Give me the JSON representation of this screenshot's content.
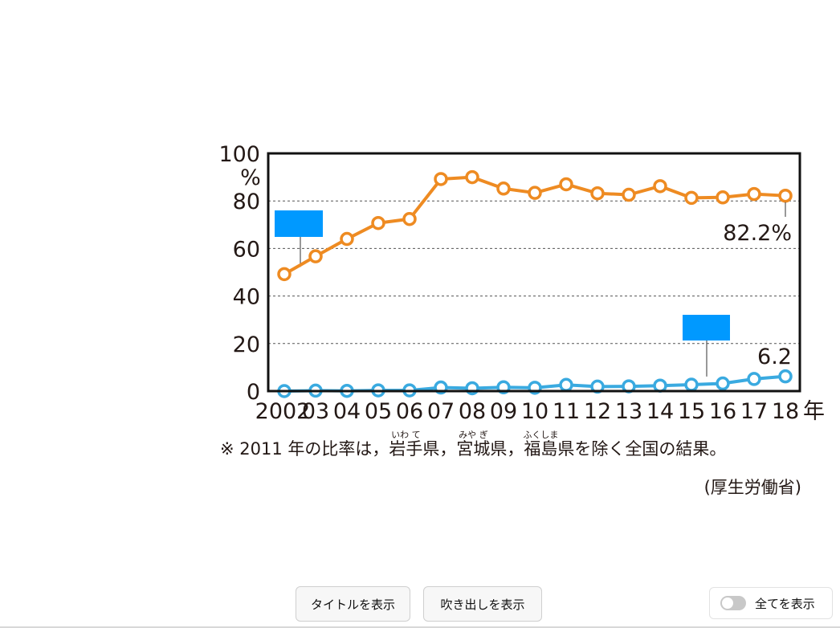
{
  "chart_data": {
    "type": "line",
    "x_labels": [
      "2002",
      "03",
      "04",
      "05",
      "06",
      "07",
      "08",
      "09",
      "10",
      "11",
      "12",
      "13",
      "14",
      "15",
      "16",
      "17",
      "18"
    ],
    "x_unit": "年",
    "y_ticks": [
      "0",
      "20",
      "40",
      "60",
      "80",
      "100"
    ],
    "y_unit": "%",
    "ylim": [
      0,
      100
    ],
    "grid": "dashed horizontal at 20, 40, 60, 80",
    "series": [
      {
        "color": "#ee8b22",
        "values": [
          49.2,
          56.7,
          64.0,
          70.7,
          72.4,
          89.2,
          90.0,
          85.2,
          83.4,
          87.0,
          83.2,
          82.6,
          86.2,
          81.3,
          81.5,
          82.9,
          82.2
        ],
        "end_label": "82.2%"
      },
      {
        "color": "#3aaae0",
        "values": [
          0.0,
          0.2,
          0.1,
          0.3,
          0.3,
          1.5,
          1.2,
          1.6,
          1.4,
          2.6,
          1.9,
          2.0,
          2.3,
          2.7,
          3.2,
          5.1,
          6.2
        ],
        "end_label": "6.2"
      }
    ],
    "callout_color": "#0099ff",
    "note": {
      "parts": [
        {
          "text": "※ 2011 年の比率は，"
        },
        {
          "text": "岩手",
          "ruby": "いわ て"
        },
        {
          "text": "県，"
        },
        {
          "text": "宮城",
          "ruby": "みや ぎ"
        },
        {
          "text": "県，"
        },
        {
          "text": "福島",
          "ruby": "ふくしま"
        },
        {
          "text": "県を除く全国の結果。"
        }
      ]
    },
    "source": "(厚生労働省)"
  },
  "controls": {
    "show_title_label": "タイトルを表示",
    "show_callout_label": "吹き出しを表示",
    "show_all_label": "全てを表示"
  }
}
